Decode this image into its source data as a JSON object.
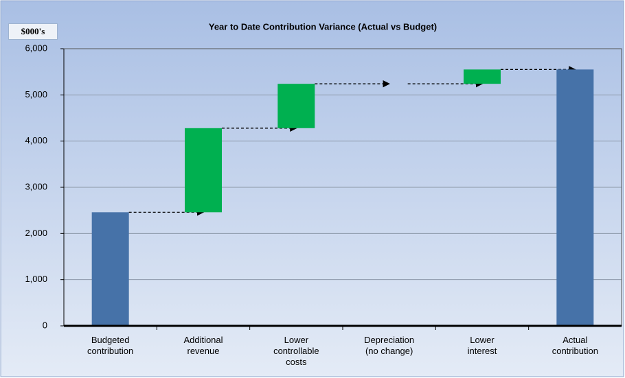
{
  "chart_data": {
    "type": "waterfall",
    "title": "Year to Date Contribution Variance (Actual vs Budget)",
    "y_axis_label": "$000's",
    "categories": [
      "Budgeted\ncontribution",
      "Additional\nrevenue",
      "Lower\ncontrollable\ncosts",
      "Depreciation\n(no change)",
      "Lower\ninterest",
      "Actual\ncontribution"
    ],
    "values": [
      2460,
      1820,
      960,
      0,
      310,
      5550
    ],
    "colors": [
      "#4672a8",
      "#00b050",
      "#00b050",
      "#00b050",
      "#00b050",
      "#4672a8"
    ],
    "ylim": [
      0,
      6000
    ],
    "yticks": [
      0,
      {
        "value": 1000,
        "label": "1,000"
      },
      {
        "value": 2000,
        "label": "2,000"
      },
      {
        "value": 3000,
        "label": "3,000"
      },
      {
        "value": 4000,
        "label": "4,000"
      },
      {
        "value": 5000,
        "label": "5,000"
      },
      {
        "value": 6000,
        "label": "6,000"
      }
    ],
    "grid": true
  }
}
